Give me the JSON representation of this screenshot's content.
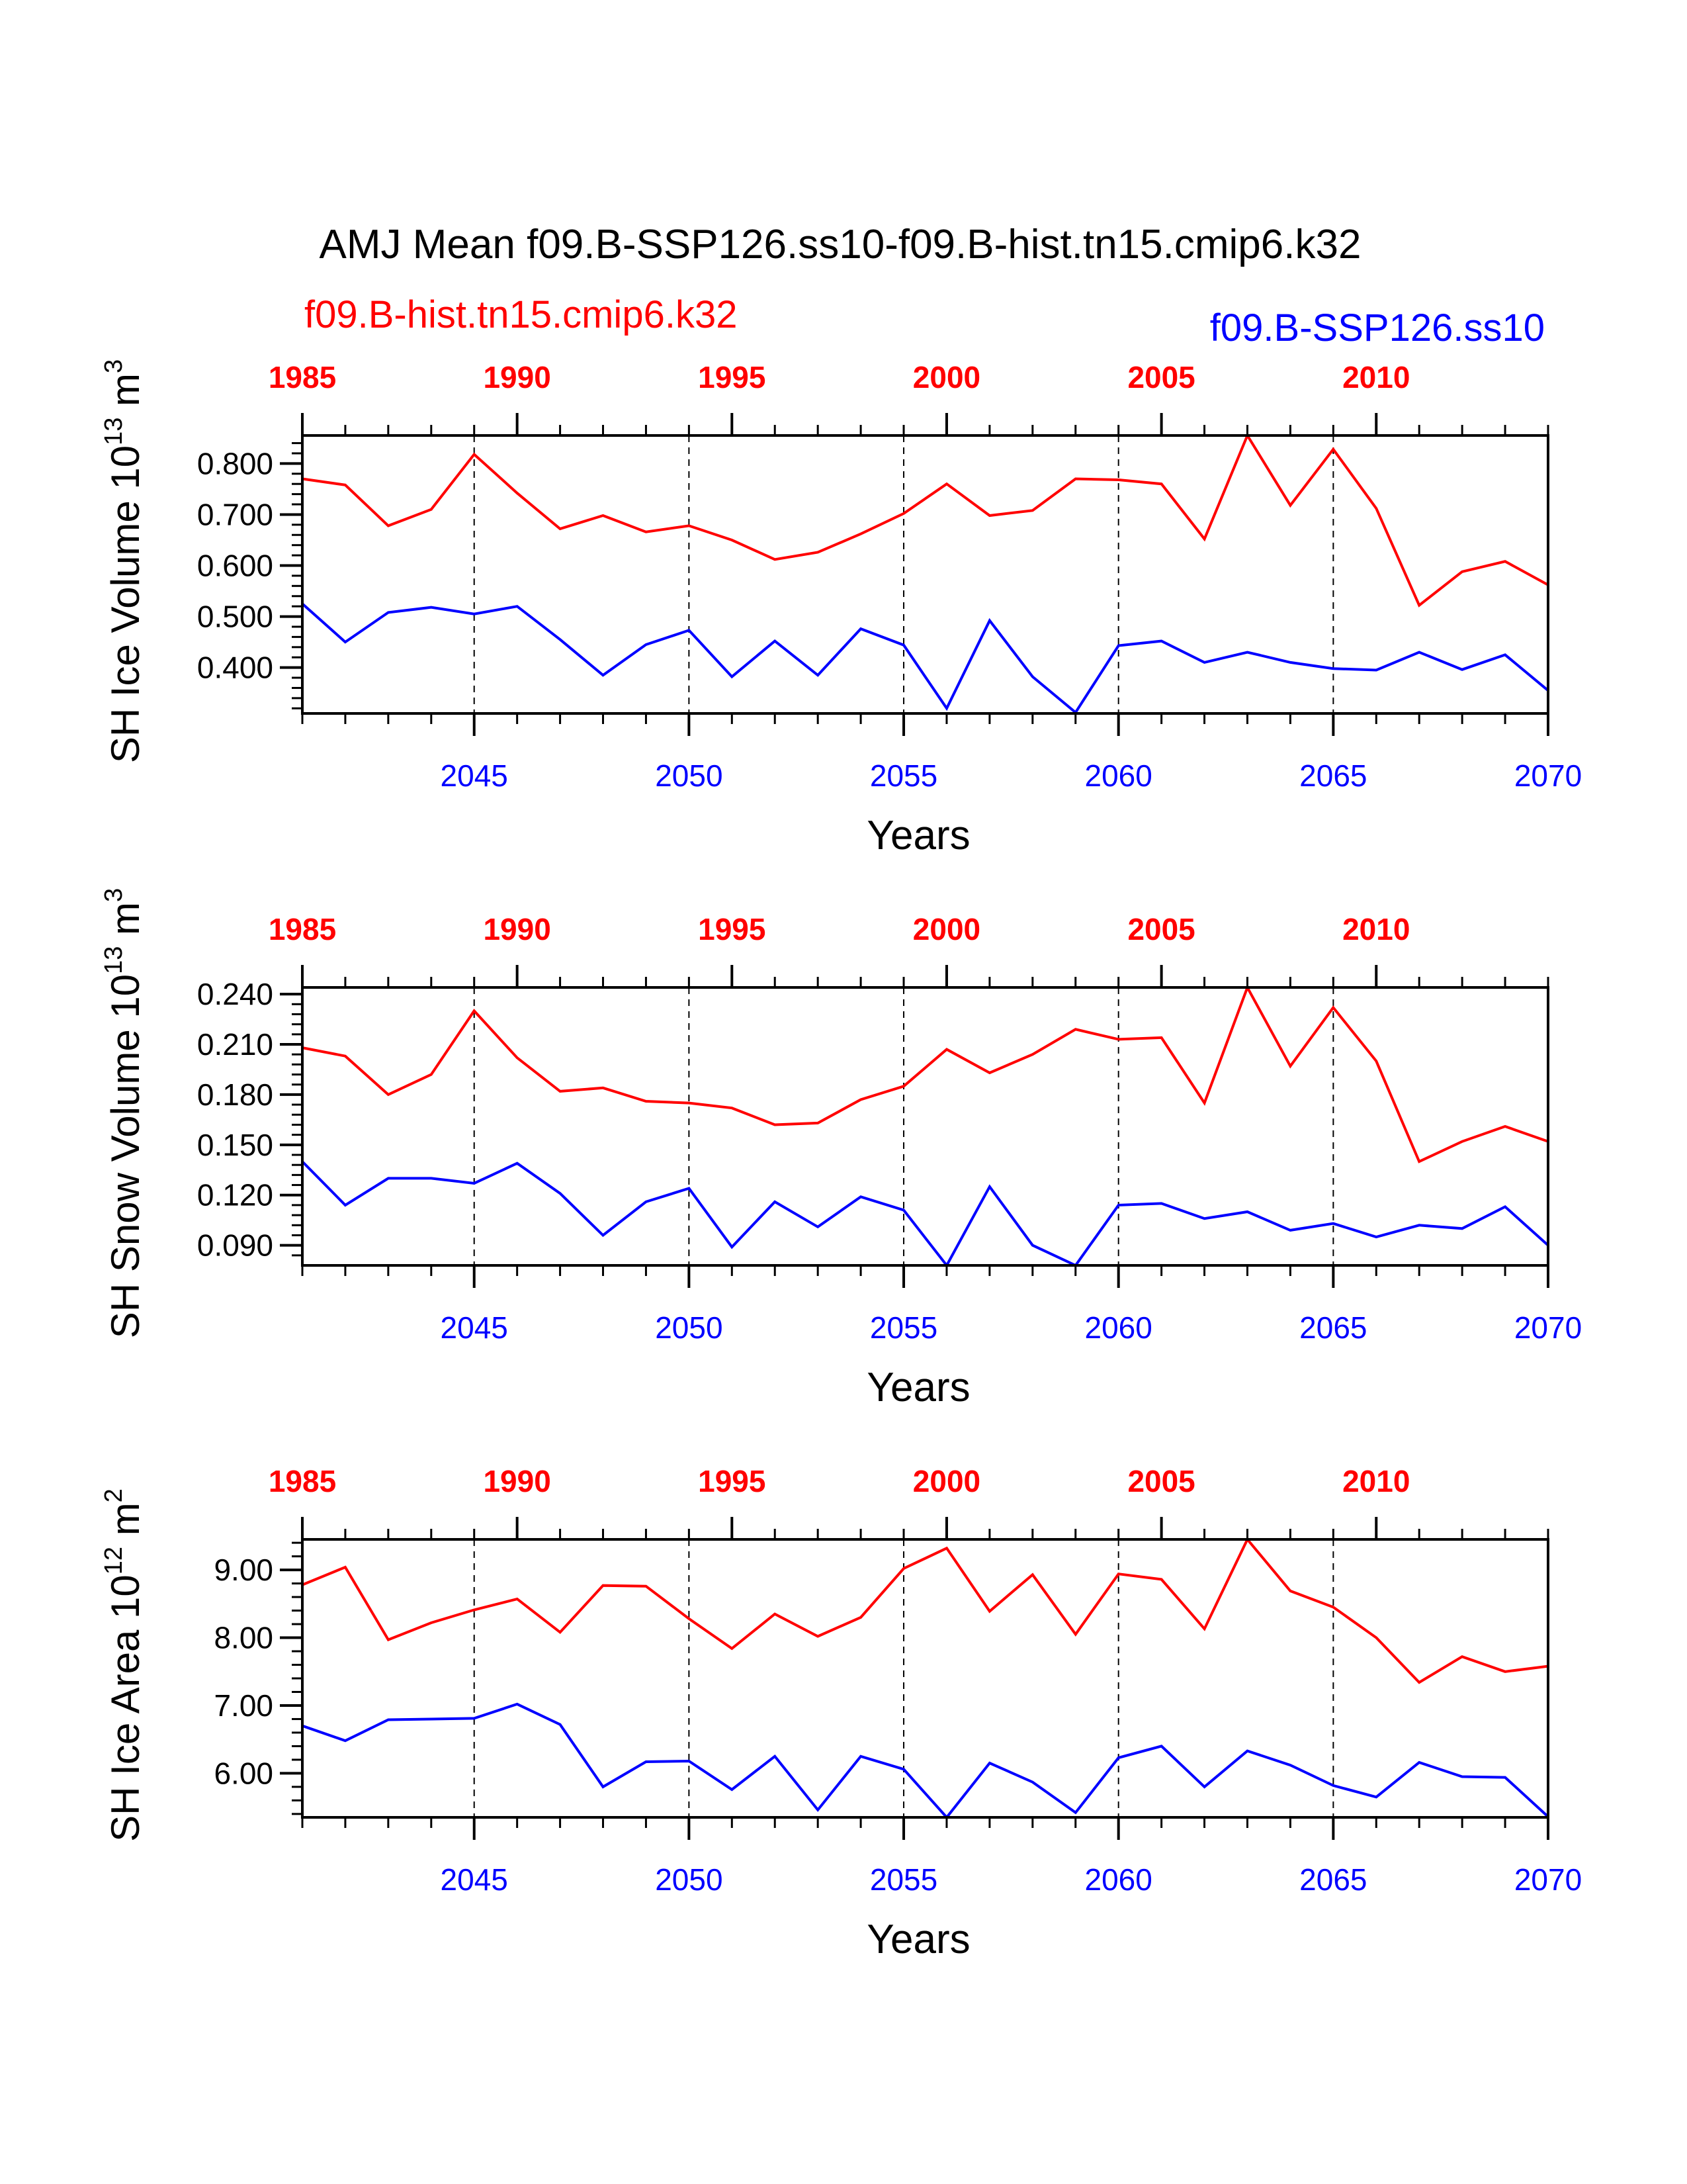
{
  "title": "AMJ Mean f09.B-SSP126.ss10-f09.B-hist.tn15.cmip6.k32",
  "legend": {
    "hist": "f09.B-hist.tn15.cmip6.k32",
    "ssp": "f09.B-SSP126.ss10"
  },
  "colors": {
    "hist": "#ff0000",
    "ssp": "#0000ff",
    "axis": "#000000"
  },
  "chart_data": [
    {
      "type": "line",
      "ylabel_main": "SH Ice Volume 10",
      "ylabel_exp": "13",
      "ylabel_unit": " m",
      "ylabel_unit_exp": "3",
      "xlabel": "Years",
      "xlim": [
        2041,
        2070
      ],
      "x2lim": [
        1985,
        2014
      ],
      "ylim": [
        0.31,
        0.855
      ],
      "yticks": [
        "0.400",
        "0.500",
        "0.600",
        "0.700",
        "0.800"
      ],
      "ytick_values": [
        0.4,
        0.5,
        0.6,
        0.7,
        0.8
      ],
      "xticks": [
        "2045",
        "2050",
        "2055",
        "2060",
        "2065",
        "2070"
      ],
      "xtick_values": [
        2045,
        2050,
        2055,
        2060,
        2065,
        2070
      ],
      "x2ticks": [
        "1985",
        "1990",
        "1995",
        "2000",
        "2005",
        "2010"
      ],
      "x2tick_values": [
        1985,
        1990,
        1995,
        2000,
        2005,
        2010
      ],
      "gridlines_x": [
        2045,
        2050,
        2055,
        2060,
        2065
      ],
      "series": [
        {
          "name": "f09.B-hist.tn15.cmip6.k32",
          "x_axis": "top",
          "values": [
            0.77,
            0.758,
            0.678,
            0.71,
            0.818,
            0.742,
            0.672,
            0.698,
            0.666,
            0.678,
            0.65,
            0.612,
            0.626,
            0.662,
            0.702,
            0.76,
            0.698,
            0.708,
            0.77,
            0.768,
            0.76,
            0.652,
            0.855,
            0.718,
            0.828,
            0.712,
            0.522,
            0.588,
            0.608,
            0.562
          ]
        },
        {
          "name": "f09.B-SSP126.ss10",
          "x_axis": "bottom",
          "values": [
            0.525,
            0.45,
            0.508,
            0.518,
            0.505,
            0.52,
            0.455,
            0.385,
            0.445,
            0.473,
            0.382,
            0.452,
            0.385,
            0.476,
            0.444,
            0.32,
            0.492,
            0.382,
            0.312,
            0.443,
            0.452,
            0.41,
            0.43,
            0.41,
            0.398,
            0.395,
            0.43,
            0.396,
            0.425,
            0.355
          ]
        }
      ]
    },
    {
      "type": "line",
      "ylabel_main": "SH Snow Volume 10",
      "ylabel_exp": "13",
      "ylabel_unit": " m",
      "ylabel_unit_exp": "3",
      "xlabel": "Years",
      "xlim": [
        2041,
        2070
      ],
      "x2lim": [
        1985,
        2014
      ],
      "ylim": [
        0.078,
        0.244
      ],
      "yticks": [
        "0.090",
        "0.120",
        "0.150",
        "0.180",
        "0.210",
        "0.240"
      ],
      "ytick_values": [
        0.09,
        0.12,
        0.15,
        0.18,
        0.21,
        0.24
      ],
      "xticks": [
        "2045",
        "2050",
        "2055",
        "2060",
        "2065",
        "2070"
      ],
      "xtick_values": [
        2045,
        2050,
        2055,
        2060,
        2065,
        2070
      ],
      "x2ticks": [
        "1985",
        "1990",
        "1995",
        "2000",
        "2005",
        "2010"
      ],
      "x2tick_values": [
        1985,
        1990,
        1995,
        2000,
        2005,
        2010
      ],
      "gridlines_x": [
        2045,
        2050,
        2055,
        2060,
        2065
      ],
      "series": [
        {
          "name": "f09.B-hist.tn15.cmip6.k32",
          "x_axis": "top",
          "values": [
            0.208,
            0.203,
            0.18,
            0.192,
            0.23,
            0.202,
            0.182,
            0.184,
            0.176,
            0.175,
            0.172,
            0.162,
            0.163,
            0.177,
            0.185,
            0.207,
            0.193,
            0.204,
            0.219,
            0.213,
            0.214,
            0.175,
            0.244,
            0.197,
            0.232,
            0.2,
            0.14,
            0.152,
            0.161,
            0.152
          ]
        },
        {
          "name": "f09.B-SSP126.ss10",
          "x_axis": "bottom",
          "values": [
            0.14,
            0.114,
            0.13,
            0.13,
            0.127,
            0.139,
            0.121,
            0.096,
            0.116,
            0.124,
            0.089,
            0.116,
            0.101,
            0.119,
            0.111,
            0.078,
            0.125,
            0.09,
            0.078,
            0.114,
            0.115,
            0.106,
            0.11,
            0.099,
            0.103,
            0.095,
            0.102,
            0.1,
            0.113,
            0.09
          ]
        }
      ]
    },
    {
      "type": "line",
      "ylabel_main": "SH Ice Area 10",
      "ylabel_exp": "12",
      "ylabel_unit": " m",
      "ylabel_unit_exp": "2",
      "xlabel": "Years",
      "xlim": [
        2041,
        2070
      ],
      "x2lim": [
        1985,
        2014
      ],
      "ylim": [
        5.35,
        9.45
      ],
      "yticks": [
        "6.00",
        "7.00",
        "8.00",
        "9.00"
      ],
      "ytick_values": [
        6.0,
        7.0,
        8.0,
        9.0
      ],
      "xticks": [
        "2045",
        "2050",
        "2055",
        "2060",
        "2065",
        "2070"
      ],
      "xtick_values": [
        2045,
        2050,
        2055,
        2060,
        2065,
        2070
      ],
      "x2ticks": [
        "1985",
        "1990",
        "1995",
        "2000",
        "2005",
        "2010"
      ],
      "x2tick_values": [
        1985,
        1990,
        1995,
        2000,
        2005,
        2010
      ],
      "gridlines_x": [
        2045,
        2050,
        2055,
        2060,
        2065
      ],
      "series": [
        {
          "name": "f09.B-hist.tn15.cmip6.k32",
          "x_axis": "top",
          "values": [
            8.78,
            9.04,
            7.97,
            8.22,
            8.41,
            8.57,
            8.08,
            8.77,
            8.76,
            8.28,
            7.84,
            8.35,
            8.02,
            8.3,
            9.02,
            9.32,
            8.39,
            8.93,
            8.05,
            8.94,
            8.86,
            8.13,
            9.45,
            8.69,
            8.45,
            8.0,
            7.34,
            7.72,
            7.5,
            7.58
          ]
        },
        {
          "name": "f09.B-SSP126.ss10",
          "x_axis": "bottom",
          "values": [
            6.7,
            6.48,
            6.79,
            6.8,
            6.81,
            7.02,
            6.72,
            5.8,
            6.17,
            6.18,
            5.76,
            6.25,
            5.46,
            6.25,
            6.06,
            5.35,
            6.15,
            5.87,
            5.42,
            6.23,
            6.4,
            5.8,
            6.33,
            6.12,
            5.82,
            5.65,
            6.16,
            5.95,
            5.94,
            5.36
          ]
        }
      ]
    }
  ]
}
